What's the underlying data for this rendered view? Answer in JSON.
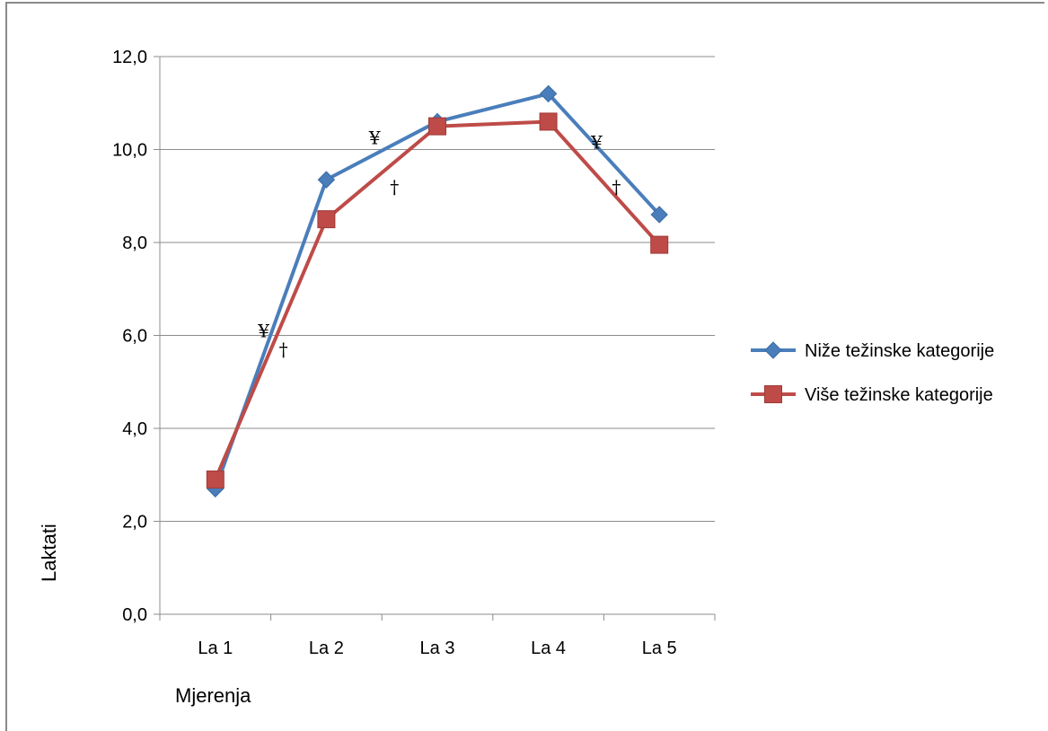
{
  "chart_data": {
    "type": "line",
    "categories": [
      "La 1",
      "La 2",
      "La 3",
      "La 4",
      "La 5"
    ],
    "series": [
      {
        "name": "Niže težinske kategorije",
        "values": [
          2.7,
          9.35,
          10.6,
          11.2,
          8.6
        ],
        "color": "#4a7ebb",
        "marker": "diamond"
      },
      {
        "name": "Više težinske kategorije",
        "values": [
          2.9,
          8.5,
          10.5,
          10.6,
          7.95
        ],
        "color": "#be4b48",
        "marker": "square"
      }
    ],
    "ylabel": "Laktati",
    "xlabel": "Mjerenja",
    "ylim": [
      0,
      12
    ],
    "ytick_labels": [
      "0,0",
      "2,0",
      "4,0",
      "6,0",
      "8,0",
      "10,0",
      "12,0"
    ],
    "grid": true,
    "legend_position": "right",
    "annotations": [
      {
        "text": "¥",
        "between": [
          0,
          1
        ],
        "y": 6.1
      },
      {
        "text": "†",
        "between": [
          0,
          1
        ],
        "y": 5.7
      },
      {
        "text": "¥",
        "between": [
          1,
          2
        ],
        "y": 10.25
      },
      {
        "text": "†",
        "between": [
          1,
          2
        ],
        "y": 9.2
      },
      {
        "text": "†",
        "between": [
          3,
          4
        ],
        "y": 9.2
      },
      {
        "text": "¥",
        "between": [
          3,
          4
        ],
        "y": 10.15
      }
    ]
  }
}
